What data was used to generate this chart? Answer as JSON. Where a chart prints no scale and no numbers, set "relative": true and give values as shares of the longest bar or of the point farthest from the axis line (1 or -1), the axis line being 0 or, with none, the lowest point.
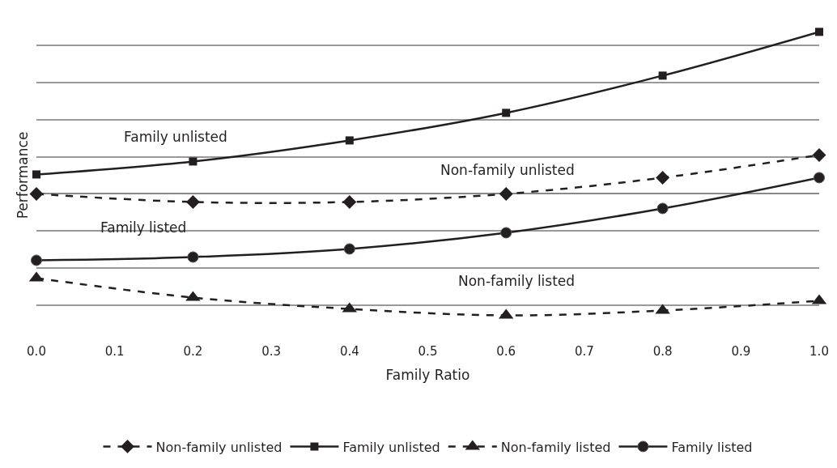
{
  "chart_data": {
    "type": "line",
    "relative": true,
    "xlabel": "Family Ratio",
    "ylabel": "Performance",
    "x": [
      0.0,
      0.2,
      0.4,
      0.6,
      0.8,
      1.0
    ],
    "xlim": [
      0,
      1
    ],
    "xticks": [
      {
        "value": 0,
        "label": "0.0"
      },
      {
        "value": 0.1,
        "label": "0.1"
      },
      {
        "value": 0.2,
        "label": "0.2"
      },
      {
        "value": 0.3,
        "label": "0.3"
      },
      {
        "value": 0.4,
        "label": "0.4"
      },
      {
        "value": 0.5,
        "label": "0.5"
      },
      {
        "value": 0.6,
        "label": "0.6"
      },
      {
        "value": 0.7,
        "label": "0.7"
      },
      {
        "value": 0.8,
        "label": "0.8"
      },
      {
        "value": 0.9,
        "label": "0.9"
      },
      {
        "value": 1,
        "label": "1.0"
      }
    ],
    "grid": "y",
    "legend": "bottom",
    "series": [
      {
        "name": "Non-family unlisted",
        "color": "#231f20",
        "marker": "diamond",
        "line_style": "dashed",
        "values": [
          0,
          -0.05,
          -0.05,
          0,
          0.1,
          0.24
        ]
      },
      {
        "name": "Family unlisted",
        "color": "#231f20",
        "marker": "square",
        "line_style": "solid",
        "values": [
          0.12,
          0.2,
          0.33,
          0.5,
          0.73,
          1
        ]
      },
      {
        "name": "Non-family listed",
        "color": "#231f20",
        "marker": "triangle",
        "line_style": "dashed",
        "values": [
          -0.52,
          -0.64,
          -0.71,
          -0.75,
          -0.72,
          -0.66
        ]
      },
      {
        "name": "Family listed",
        "color": "#231f20",
        "marker": "circle",
        "line_style": "solid",
        "values": [
          -0.41,
          -0.39,
          -0.34,
          -0.24,
          -0.09,
          0.1
        ]
      }
    ],
    "annotations": [
      "Family unlisted",
      "Non-family unlisted",
      "Family listed",
      "Non-family listed"
    ]
  }
}
